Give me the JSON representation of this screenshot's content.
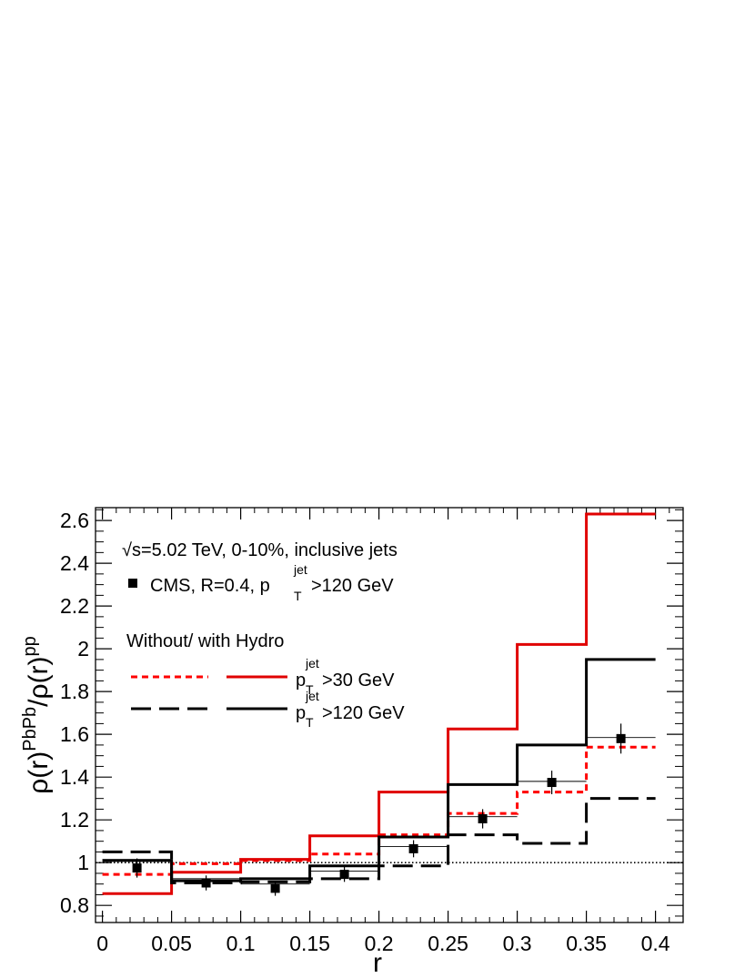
{
  "chart_data": {
    "type": "line",
    "xlabel": "r",
    "ylabel": {
      "base1": "ρ(r)",
      "sup1": "PbPb",
      "slash": "/ρ(r)",
      "sup2": "pp"
    },
    "xlim": [
      -0.005,
      0.42
    ],
    "ylim": [
      0.72,
      2.66
    ],
    "x_ticks": [
      0,
      0.05,
      0.1,
      0.15,
      0.2,
      0.25,
      0.3,
      0.35,
      0.4
    ],
    "x_tick_labels": [
      "0",
      "0.05",
      "0.1",
      "0.15",
      "0.2",
      "0.25",
      "0.3",
      "0.35",
      "0.4"
    ],
    "y_ticks": [
      0.8,
      1.0,
      1.2,
      1.4,
      1.6,
      1.8,
      2.0,
      2.2,
      2.4,
      2.6
    ],
    "y_tick_labels": [
      "0.8",
      "1",
      "1.2",
      "1.4",
      "1.6",
      "1.8",
      "2",
      "2.2",
      "2.4",
      "2.6"
    ],
    "bin_edges": [
      0,
      0.05,
      0.1,
      0.15,
      0.2,
      0.25,
      0.3,
      0.35,
      0.4
    ],
    "reference_line": 1.0,
    "annotations": {
      "energy": "=5.02 TeV, 0-10%, inclusive jets",
      "energy_sqrt": "√s",
      "cms_label": "CMS, R=0.4, p",
      "cms_sup": "jet",
      "cms_sub": "T",
      "cms_cut": ">120 GeV",
      "legend_header": "Without/  with Hydro"
    },
    "series": [
      {
        "name": "Without Hydro, p_T^jet>30 GeV",
        "style": "dotted",
        "color": "#ff0000",
        "values": [
          0.945,
          0.995,
          1.01,
          1.04,
          1.13,
          1.23,
          1.33,
          1.54
        ]
      },
      {
        "name": "With Hydro, p_T^jet>30 GeV",
        "style": "solid",
        "color": "#e00000",
        "values": [
          0.855,
          0.955,
          1.015,
          1.125,
          1.33,
          1.625,
          2.02,
          2.63
        ]
      },
      {
        "name": "Without Hydro, p_T^jet>120 GeV",
        "style": "dashed",
        "color": "#000000",
        "values": [
          1.05,
          0.905,
          0.91,
          0.925,
          0.985,
          1.13,
          1.09,
          1.3
        ]
      },
      {
        "name": "With Hydro, p_T^jet>120 GeV",
        "style": "solid",
        "color": "#000000",
        "values": [
          1.01,
          0.915,
          0.925,
          0.985,
          1.12,
          1.365,
          1.55,
          1.95
        ]
      }
    ],
    "cms_points": {
      "name": "CMS, R=0.4",
      "x": [
        0.025,
        0.075,
        0.125,
        0.175,
        0.225,
        0.275,
        0.325,
        0.375
      ],
      "y": [
        0.975,
        0.905,
        0.88,
        0.945,
        1.065,
        1.205,
        1.375,
        1.58
      ],
      "y_err": [
        0.045,
        0.035,
        0.035,
        0.035,
        0.04,
        0.045,
        0.055,
        0.07
      ],
      "band": [
        1.015,
        0.925,
        0.9,
        0.96,
        1.075,
        1.215,
        1.38,
        1.585
      ]
    },
    "legend": [
      {
        "label": "p",
        "sup": "jet",
        "sub": "T",
        "cut": ">30 GeV"
      },
      {
        "label": "p",
        "sup": "jet",
        "sub": "T",
        "cut": ">120 GeV"
      }
    ]
  }
}
